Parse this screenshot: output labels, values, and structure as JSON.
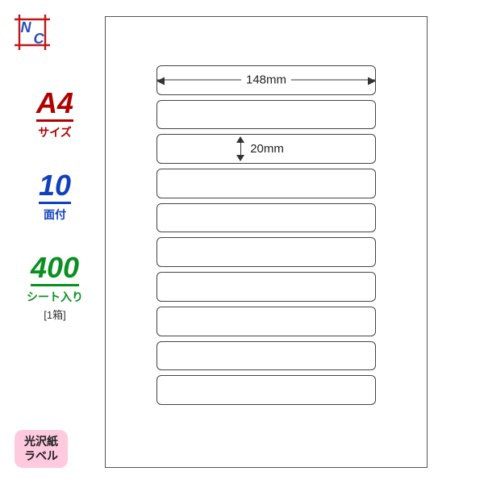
{
  "logo": {
    "outer_color": "#c01818",
    "inner_color": "#2a4cc0",
    "letters": {
      "n": "N",
      "c": "C"
    }
  },
  "specs": [
    {
      "big": "A4",
      "small": "サイズ",
      "color": "#b00000",
      "note": null
    },
    {
      "big": "10",
      "small": "面付",
      "color": "#1040c0",
      "note": null
    },
    {
      "big": "400",
      "small": "シート入り",
      "color": "#0a9020",
      "note": "[1箱]"
    }
  ],
  "paper_tag": {
    "line1": "光沢紙",
    "line2": "ラベル",
    "bg": "#ffc9de",
    "fg": "#202020"
  },
  "sheet": {
    "rows": 10,
    "width_label": "148mm",
    "height_label": "20mm",
    "border_color": "#555555",
    "label_border_color": "#444444",
    "background": "#ffffff"
  }
}
